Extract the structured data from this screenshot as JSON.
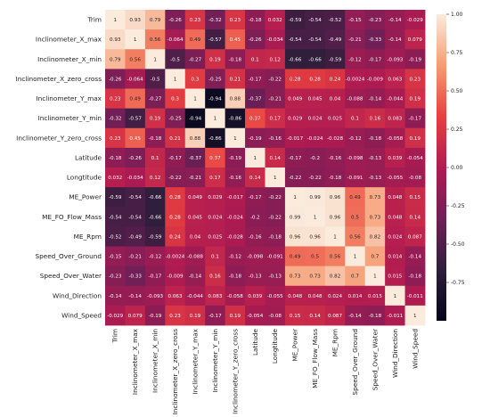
{
  "chart_data": {
    "type": "heatmap",
    "title": "",
    "xlabel": "",
    "ylabel": "",
    "labels": [
      "Trim",
      "Inclinometer_X_max",
      "Inclinometer_X_min",
      "Inclinometer_X_zero_cross",
      "Inclinometer_Y_max",
      "Inclinometer_Y_min",
      "Inclinometer_Y_zero_cross",
      "Latitude",
      "Longtitude",
      "ME_Power",
      "ME_FO_Flow_Mass",
      "ME_Rpm",
      "Speed_Over_Ground",
      "Speed_Over_Water",
      "Wind_Direction",
      "Wind_Speed"
    ],
    "matrix": [
      [
        1,
        0.93,
        0.79,
        -0.26,
        0.23,
        -0.32,
        0.23,
        -0.18,
        0.032,
        -0.59,
        -0.54,
        -0.52,
        -0.15,
        -0.23,
        -0.14,
        -0.029
      ],
      [
        0.93,
        1,
        0.56,
        -0.064,
        0.49,
        -0.57,
        0.45,
        -0.26,
        -0.034,
        -0.54,
        -0.54,
        -0.49,
        -0.21,
        -0.33,
        -0.14,
        0.079
      ],
      [
        0.79,
        0.56,
        1,
        -0.5,
        -0.27,
        0.19,
        -0.18,
        0.1,
        0.12,
        -0.66,
        -0.66,
        -0.59,
        -0.12,
        -0.17,
        -0.093,
        -0.19
      ],
      [
        -0.26,
        -0.064,
        -0.5,
        1,
        0.3,
        -0.25,
        0.21,
        -0.17,
        -0.22,
        0.28,
        0.28,
        0.24,
        -0.0024,
        -0.009,
        0.063,
        0.23
      ],
      [
        0.23,
        0.49,
        -0.27,
        0.3,
        1,
        -0.94,
        0.88,
        -0.37,
        -0.21,
        0.049,
        0.045,
        0.04,
        -0.088,
        -0.14,
        -0.044,
        0.19
      ],
      [
        -0.32,
        -0.57,
        0.19,
        -0.25,
        -0.94,
        1,
        -0.86,
        0.37,
        0.17,
        0.029,
        0.024,
        0.025,
        0.1,
        0.16,
        0.083,
        -0.17
      ],
      [
        0.23,
        0.45,
        -0.18,
        0.21,
        0.88,
        -0.86,
        1,
        -0.19,
        -0.16,
        -0.017,
        -0.024,
        -0.028,
        -0.12,
        -0.18,
        -0.058,
        0.19
      ],
      [
        -0.18,
        -0.26,
        0.1,
        -0.17,
        -0.37,
        0.37,
        -0.19,
        1,
        0.14,
        -0.17,
        -0.2,
        -0.16,
        -0.098,
        -0.13,
        0.039,
        -0.054
      ],
      [
        0.032,
        -0.034,
        0.12,
        -0.22,
        -0.21,
        0.17,
        -0.16,
        0.14,
        1,
        -0.22,
        -0.22,
        -0.18,
        -0.091,
        -0.13,
        -0.055,
        -0.08
      ],
      [
        -0.59,
        -0.54,
        -0.66,
        0.28,
        0.049,
        0.029,
        -0.017,
        -0.17,
        -0.22,
        1,
        0.99,
        0.96,
        0.49,
        0.73,
        0.048,
        0.15
      ],
      [
        -0.54,
        -0.54,
        -0.66,
        0.28,
        0.045,
        0.024,
        -0.024,
        -0.2,
        -0.22,
        0.99,
        1,
        0.96,
        0.5,
        0.73,
        0.048,
        0.14
      ],
      [
        -0.52,
        -0.49,
        -0.59,
        0.24,
        0.04,
        0.025,
        -0.028,
        -0.16,
        -0.18,
        0.96,
        0.96,
        1,
        0.56,
        0.82,
        0.024,
        0.087
      ],
      [
        -0.15,
        -0.21,
        -0.12,
        -0.0024,
        -0.088,
        0.1,
        -0.12,
        -0.098,
        -0.091,
        0.49,
        0.5,
        0.56,
        1,
        0.7,
        0.014,
        -0.14
      ],
      [
        -0.23,
        -0.33,
        -0.17,
        -0.009,
        -0.14,
        0.16,
        -0.18,
        -0.13,
        -0.13,
        0.73,
        0.73,
        0.82,
        0.7,
        1,
        0.015,
        -0.18
      ],
      [
        -0.14,
        -0.14,
        -0.093,
        0.063,
        -0.044,
        0.083,
        -0.058,
        0.039,
        -0.055,
        0.048,
        0.048,
        0.024,
        0.014,
        0.015,
        1,
        -0.011
      ],
      [
        -0.029,
        0.079,
        -0.19,
        0.23,
        0.19,
        -0.17,
        0.19,
        -0.054,
        -0.08,
        0.15,
        0.14,
        0.087,
        -0.14,
        -0.18,
        -0.011,
        1
      ]
    ],
    "value_labels": [
      [
        "1",
        "0.93",
        "0.79",
        "-0.26",
        "0.23",
        "-0.32",
        "0.23",
        "-0.18",
        "0.032",
        "-0.59",
        "-0.54",
        "-0.52",
        "-0.15",
        "-0.23",
        "-0.14",
        "-0.029"
      ],
      [
        "0.93",
        "1",
        "0.56",
        "-0.064",
        "0.49",
        "-0.57",
        "0.45",
        "-0.26",
        "-0.034",
        "-0.54",
        "-0.54",
        "-0.49",
        "-0.21",
        "-0.33",
        "-0.14",
        "0.079"
      ],
      [
        "0.79",
        "0.56",
        "1",
        "-0.5",
        "-0.27",
        "0.19",
        "-0.18",
        "0.1",
        "0.12",
        "-0.66",
        "-0.66",
        "-0.59",
        "-0.12",
        "-0.17",
        "-0.093",
        "-0.19"
      ],
      [
        "-0.26",
        "-0.064",
        "-0.5",
        "1",
        "0.3",
        "-0.25",
        "0.21",
        "-0.17",
        "-0.22",
        "0.28",
        "0.28",
        "0.24",
        "-0.0024",
        "-0.009",
        "0.063",
        "0.23"
      ],
      [
        "0.23",
        "0.49",
        "-0.27",
        "0.3",
        "1",
        "-0.94",
        "0.88",
        "-0.37",
        "-0.21",
        "0.049",
        "0.045",
        "0.04",
        "-0.088",
        "-0.14",
        "-0.044",
        "0.19"
      ],
      [
        "-0.32",
        "-0.57",
        "0.19",
        "-0.25",
        "-0.94",
        "1",
        "-0.86",
        "0.37",
        "0.17",
        "0.029",
        "0.024",
        "0.025",
        "0.1",
        "0.16",
        "0.083",
        "-0.17"
      ],
      [
        "0.23",
        "0.45",
        "-0.18",
        "0.21",
        "0.88",
        "-0.86",
        "1",
        "-0.19",
        "-0.16",
        "-0.017",
        "-0.024",
        "-0.028",
        "-0.12",
        "-0.18",
        "-0.058",
        "0.19"
      ],
      [
        "-0.18",
        "-0.26",
        "0.1",
        "-0.17",
        "-0.37",
        "0.37",
        "-0.19",
        "1",
        "0.14",
        "-0.17",
        "-0.2",
        "-0.16",
        "-0.098",
        "-0.13",
        "0.039",
        "-0.054"
      ],
      [
        "0.032",
        "-0.034",
        "0.12",
        "-0.22",
        "-0.21",
        "0.17",
        "-0.16",
        "0.14",
        "1",
        "-0.22",
        "-0.22",
        "-0.18",
        "-0.091",
        "-0.13",
        "-0.055",
        "-0.08"
      ],
      [
        "-0.59",
        "-0.54",
        "-0.66",
        "0.28",
        "0.049",
        "0.029",
        "-0.017",
        "-0.17",
        "-0.22",
        "1",
        "0.99",
        "0.96",
        "0.49",
        "0.73",
        "0.048",
        "0.15"
      ],
      [
        "-0.54",
        "-0.54",
        "-0.66",
        "0.28",
        "0.045",
        "0.024",
        "-0.024",
        "-0.2",
        "-0.22",
        "0.99",
        "1",
        "0.96",
        "0.5",
        "0.73",
        "0.048",
        "0.14"
      ],
      [
        "-0.52",
        "-0.49",
        "-0.59",
        "0.24",
        "0.04",
        "0.025",
        "-0.028",
        "-0.16",
        "-0.18",
        "0.96",
        "0.96",
        "1",
        "0.56",
        "0.82",
        "0.024",
        "0.087"
      ],
      [
        "-0.15",
        "-0.21",
        "-0.12",
        "-0.0024",
        "-0.088",
        "0.1",
        "-0.12",
        "-0.098",
        "-0.091",
        "0.49",
        "0.5",
        "0.56",
        "1",
        "0.7",
        "0.014",
        "-0.14"
      ],
      [
        "-0.23",
        "-0.33",
        "-0.17",
        "-0.009",
        "-0.14",
        "0.16",
        "-0.18",
        "-0.13",
        "-0.13",
        "0.73",
        "0.73",
        "0.82",
        "0.7",
        "1",
        "0.015",
        "-0.18"
      ],
      [
        "-0.14",
        "-0.14",
        "-0.093",
        "0.063",
        "-0.044",
        "0.083",
        "-0.058",
        "0.039",
        "-0.055",
        "0.048",
        "0.048",
        "0.024",
        "0.014",
        "0.015",
        "1",
        "-0.011"
      ],
      [
        "-0.029",
        "0.079",
        "-0.19",
        "0.23",
        "0.19",
        "-0.17",
        "0.19",
        "-0.054",
        "-0.08",
        "0.15",
        "0.14",
        "0.087",
        "-0.14",
        "-0.18",
        "-0.011",
        "1"
      ]
    ],
    "colorbar": {
      "range": [
        -1,
        1
      ],
      "ticks": [
        1.0,
        0.75,
        0.5,
        0.25,
        0.0,
        -0.25,
        -0.5,
        -0.75
      ],
      "tick_labels": [
        "1.00",
        "0.75",
        "0.50",
        "0.25",
        "0.00",
        "-0.25",
        "-0.50",
        "-0.75"
      ],
      "colormap": "rocket",
      "stops": [
        "#03051a",
        "#2e1e3b",
        "#701f57",
        "#b01b51",
        "#e83f3f",
        "#f69c73",
        "#faebdd"
      ]
    },
    "grid": false,
    "legend": "colorbar-right"
  }
}
